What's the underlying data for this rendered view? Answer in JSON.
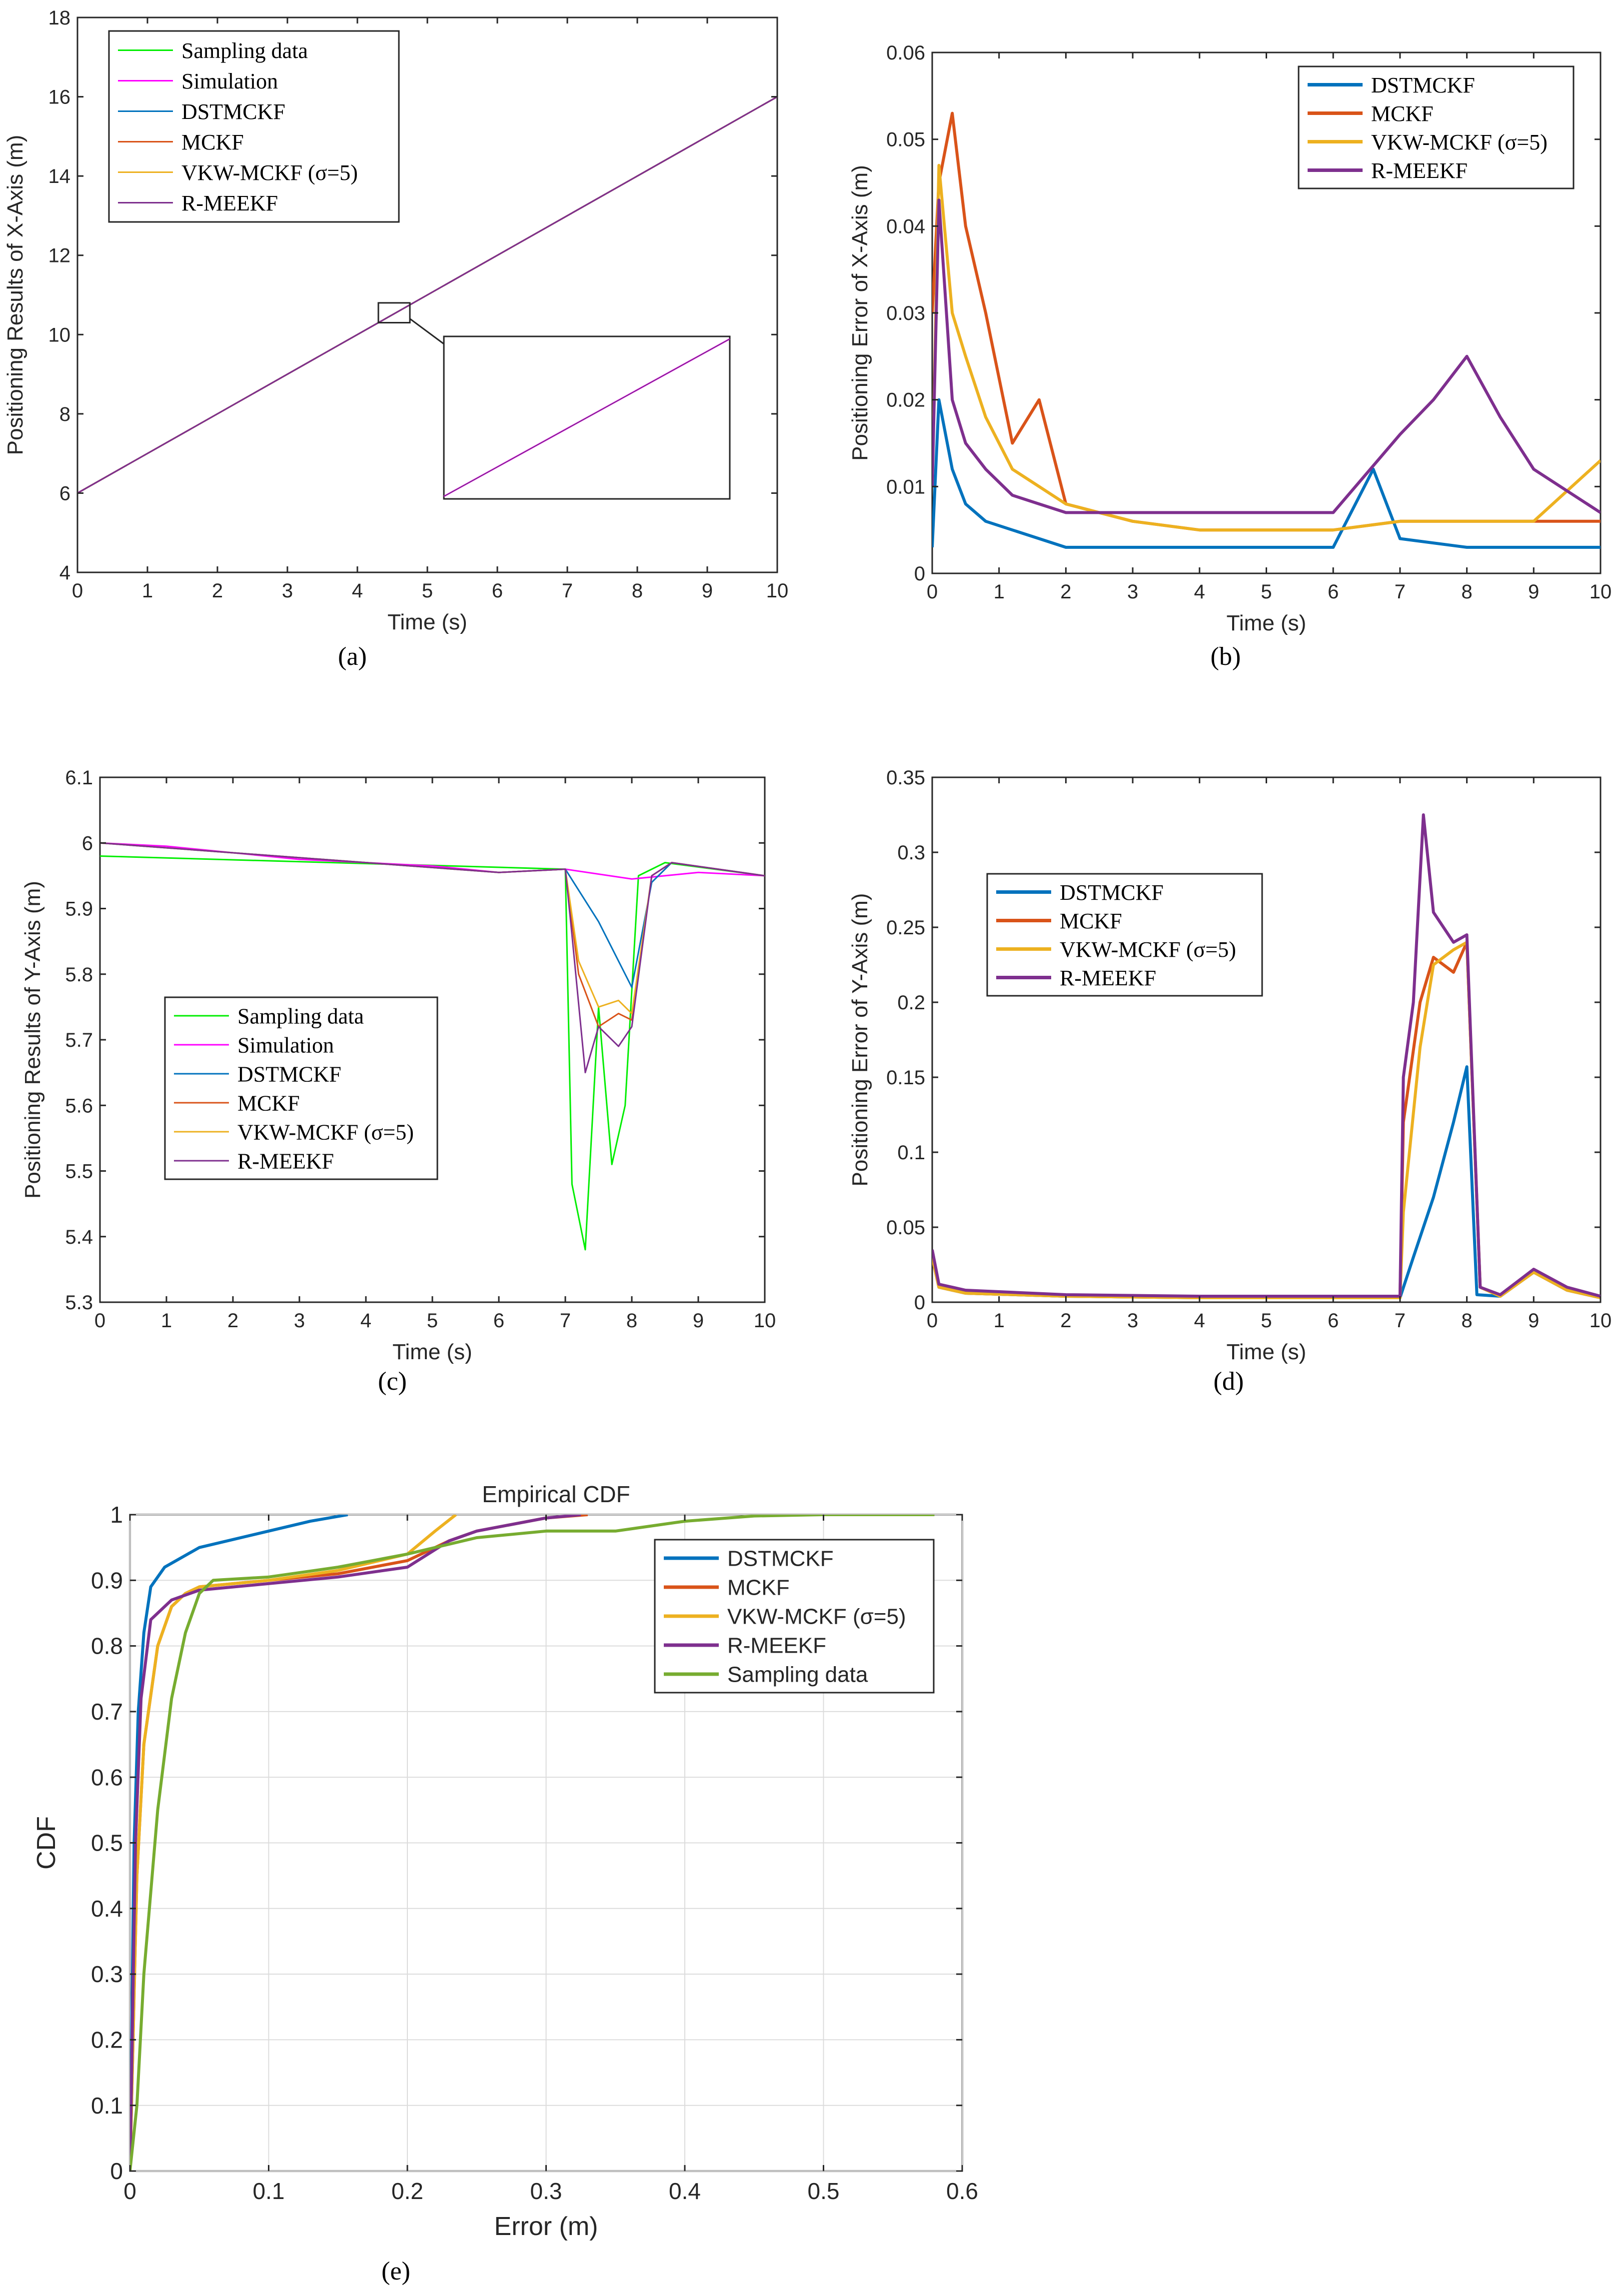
{
  "colors": {
    "sampling_green": "#00ee00",
    "simulation_magenta": "#ff00ff",
    "dstmckf": "#0072bd",
    "mckf": "#d95319",
    "vkw": "#edb120",
    "rmeekf": "#7e2f8e",
    "sampling_cdf": "#77ac30"
  },
  "chart_data": [
    {
      "id": "a",
      "panel_label": "(a)",
      "type": "line",
      "xlabel": "Time (s)",
      "ylabel": "Positioning Results of X-Axis (m)",
      "xlim": [
        0,
        10
      ],
      "ylim": [
        4,
        18
      ],
      "xticks": [
        "0",
        "1",
        "2",
        "3",
        "4",
        "5",
        "6",
        "7",
        "8",
        "9",
        "10"
      ],
      "yticks": [
        "4",
        "6",
        "8",
        "10",
        "12",
        "14",
        "16",
        "18"
      ],
      "legend_placement": "top-left",
      "note": "All series follow the straight line x = 6 + t (m); inset zoom of the region near t = 4.5 s, x = 10.5 m",
      "series": [
        {
          "name": "Sampling data",
          "color": "#00ee00",
          "x": [
            0,
            10
          ],
          "y": [
            6,
            16
          ]
        },
        {
          "name": "Simulation",
          "color": "#ff00ff",
          "x": [
            0,
            10
          ],
          "y": [
            6,
            16
          ]
        },
        {
          "name": "DSTMCKF",
          "color": "#0072bd",
          "x": [
            0,
            10
          ],
          "y": [
            6,
            16
          ]
        },
        {
          "name": "MCKF",
          "color": "#d95319",
          "x": [
            0,
            10
          ],
          "y": [
            6,
            16
          ]
        },
        {
          "name": "VKW-MCKF (σ=5)",
          "color": "#edb120",
          "x": [
            0,
            10
          ],
          "y": [
            6,
            16
          ]
        },
        {
          "name": "R-MEEKF",
          "color": "#7e2f8e",
          "x": [
            0,
            10
          ],
          "y": [
            6,
            16
          ]
        }
      ]
    },
    {
      "id": "b",
      "panel_label": "(b)",
      "type": "line",
      "xlabel": "Time (s)",
      "ylabel": "Positioning Error of X-Axis (m)",
      "xlim": [
        0,
        10
      ],
      "ylim": [
        0,
        0.06
      ],
      "xticks": [
        "0",
        "1",
        "2",
        "3",
        "4",
        "5",
        "6",
        "7",
        "8",
        "9",
        "10"
      ],
      "yticks": [
        "0",
        "0.01",
        "0.02",
        "0.03",
        "0.04",
        "0.05",
        "0.06"
      ],
      "legend_placement": "top-right",
      "series": [
        {
          "name": "DSTMCKF",
          "color": "#0072bd",
          "x": [
            0,
            0.1,
            0.3,
            0.5,
            0.8,
            1.2,
            1.6,
            2,
            3,
            4,
            5,
            6,
            6.6,
            7,
            8,
            9,
            10
          ],
          "y": [
            0.003,
            0.02,
            0.012,
            0.008,
            0.006,
            0.005,
            0.004,
            0.003,
            0.003,
            0.003,
            0.003,
            0.003,
            0.012,
            0.004,
            0.003,
            0.003,
            0.003
          ]
        },
        {
          "name": "MCKF",
          "color": "#d95319",
          "x": [
            0,
            0.1,
            0.3,
            0.5,
            0.8,
            1.2,
            1.6,
            2,
            3,
            4,
            5,
            6,
            7,
            8,
            9,
            10
          ],
          "y": [
            0.03,
            0.045,
            0.053,
            0.04,
            0.03,
            0.015,
            0.02,
            0.008,
            0.006,
            0.005,
            0.005,
            0.005,
            0.006,
            0.006,
            0.006,
            0.006
          ]
        },
        {
          "name": "VKW-MCKF (σ=5)",
          "color": "#edb120",
          "x": [
            0,
            0.1,
            0.3,
            0.5,
            0.8,
            1.2,
            1.6,
            2,
            3,
            4,
            5,
            6,
            7,
            8,
            9,
            10
          ],
          "y": [
            0.01,
            0.047,
            0.03,
            0.025,
            0.018,
            0.012,
            0.01,
            0.008,
            0.006,
            0.005,
            0.005,
            0.005,
            0.006,
            0.006,
            0.006,
            0.013
          ]
        },
        {
          "name": "R-MEEKF",
          "color": "#7e2f8e",
          "x": [
            0,
            0.1,
            0.3,
            0.5,
            0.8,
            1.2,
            1.6,
            2,
            3,
            4,
            5,
            6,
            7,
            7.5,
            8,
            8.5,
            9,
            10
          ],
          "y": [
            0.01,
            0.043,
            0.02,
            0.015,
            0.012,
            0.009,
            0.008,
            0.007,
            0.007,
            0.007,
            0.007,
            0.007,
            0.016,
            0.02,
            0.025,
            0.018,
            0.012,
            0.007
          ]
        }
      ]
    },
    {
      "id": "c",
      "panel_label": "(c)",
      "type": "line",
      "xlabel": "Time (s)",
      "ylabel": "Positioning Results of Y-Axis (m)",
      "xlim": [
        0,
        10
      ],
      "ylim": [
        5.3,
        6.1
      ],
      "xticks": [
        "0",
        "1",
        "2",
        "3",
        "4",
        "5",
        "6",
        "7",
        "8",
        "9",
        "10"
      ],
      "yticks": [
        "5.3",
        "5.4",
        "5.5",
        "5.6",
        "5.7",
        "5.8",
        "5.9",
        "6",
        "6.1"
      ],
      "legend_placement": "bottom-left",
      "series": [
        {
          "name": "Sampling data",
          "color": "#00ee00",
          "x": [
            0,
            7,
            7.1,
            7.3,
            7.5,
            7.7,
            7.9,
            8.1,
            8.5,
            10
          ],
          "y": [
            5.98,
            5.96,
            5.48,
            5.38,
            5.75,
            5.51,
            5.6,
            5.95,
            5.97,
            5.95
          ]
        },
        {
          "name": "Simulation",
          "color": "#ff00ff",
          "x": [
            0,
            1,
            2,
            3,
            4,
            5,
            6,
            7,
            8,
            9,
            10
          ],
          "y": [
            6.0,
            5.995,
            5.985,
            5.975,
            5.97,
            5.965,
            5.955,
            5.96,
            5.945,
            5.955,
            5.95
          ]
        },
        {
          "name": "DSTMCKF",
          "color": "#0072bd",
          "x": [
            0,
            6,
            7,
            7.5,
            8,
            8.3,
            8.6,
            10
          ],
          "y": [
            6.0,
            5.955,
            5.96,
            5.88,
            5.78,
            5.94,
            5.97,
            5.95
          ]
        },
        {
          "name": "MCKF",
          "color": "#d95319",
          "x": [
            0,
            6,
            7,
            7.2,
            7.5,
            7.8,
            8,
            8.3,
            8.6,
            10
          ],
          "y": [
            6.0,
            5.955,
            5.96,
            5.8,
            5.72,
            5.74,
            5.73,
            5.95,
            5.97,
            5.95
          ]
        },
        {
          "name": "VKW-MCKF (σ=5)",
          "color": "#edb120",
          "x": [
            0,
            6,
            7,
            7.2,
            7.5,
            7.8,
            8,
            8.3,
            8.6,
            10
          ],
          "y": [
            6.0,
            5.955,
            5.96,
            5.82,
            5.75,
            5.76,
            5.74,
            5.95,
            5.97,
            5.95
          ]
        },
        {
          "name": "R-MEEKF",
          "color": "#7e2f8e",
          "x": [
            0,
            6,
            7,
            7.1,
            7.3,
            7.5,
            7.8,
            8,
            8.3,
            8.6,
            10
          ],
          "y": [
            6.0,
            5.955,
            5.96,
            5.86,
            5.65,
            5.72,
            5.69,
            5.72,
            5.95,
            5.97,
            5.95
          ]
        }
      ]
    },
    {
      "id": "d",
      "panel_label": "(d)",
      "type": "line",
      "xlabel": "Time (s)",
      "ylabel": "Positioning Error of Y-Axis (m)",
      "xlim": [
        0,
        10
      ],
      "ylim": [
        0,
        0.35
      ],
      "xticks": [
        "0",
        "1",
        "2",
        "3",
        "4",
        "5",
        "6",
        "7",
        "8",
        "9",
        "10"
      ],
      "yticks": [
        "0",
        "0.05",
        "0.1",
        "0.15",
        "0.2",
        "0.25",
        "0.3",
        "0.35"
      ],
      "legend_placement": "top-left",
      "series": [
        {
          "name": "DSTMCKF",
          "color": "#0072bd",
          "x": [
            0,
            0.1,
            0.5,
            2,
            4,
            6,
            7,
            7.2,
            7.5,
            7.8,
            8,
            8.15,
            8.5,
            9,
            9.5,
            10
          ],
          "y": [
            0.03,
            0.01,
            0.006,
            0.004,
            0.003,
            0.003,
            0.003,
            0.03,
            0.07,
            0.12,
            0.157,
            0.005,
            0.004,
            0.02,
            0.008,
            0.003
          ]
        },
        {
          "name": "MCKF",
          "color": "#d95319",
          "x": [
            0,
            0.1,
            0.5,
            2,
            4,
            6,
            7,
            7.05,
            7.3,
            7.5,
            7.8,
            8,
            8.2,
            8.5,
            9,
            9.5,
            10
          ],
          "y": [
            0.03,
            0.01,
            0.006,
            0.004,
            0.003,
            0.003,
            0.003,
            0.12,
            0.2,
            0.23,
            0.22,
            0.24,
            0.01,
            0.004,
            0.02,
            0.008,
            0.003
          ]
        },
        {
          "name": "VKW-MCKF (σ=5)",
          "color": "#edb120",
          "x": [
            0,
            0.1,
            0.5,
            2,
            4,
            6,
            7,
            7.05,
            7.3,
            7.5,
            7.8,
            8,
            8.2,
            8.5,
            9,
            9.5,
            10
          ],
          "y": [
            0.03,
            0.01,
            0.006,
            0.004,
            0.003,
            0.003,
            0.003,
            0.06,
            0.17,
            0.225,
            0.235,
            0.24,
            0.01,
            0.004,
            0.02,
            0.008,
            0.003
          ]
        },
        {
          "name": "R-MEEKF",
          "color": "#7e2f8e",
          "x": [
            0,
            0.1,
            0.5,
            2,
            4,
            6,
            7,
            7.05,
            7.2,
            7.35,
            7.5,
            7.8,
            8,
            8.2,
            8.5,
            9,
            9.5,
            10
          ],
          "y": [
            0.035,
            0.012,
            0.008,
            0.005,
            0.004,
            0.004,
            0.004,
            0.15,
            0.2,
            0.325,
            0.26,
            0.24,
            0.245,
            0.01,
            0.005,
            0.022,
            0.01,
            0.004
          ]
        }
      ]
    },
    {
      "id": "e",
      "panel_label": "(e)",
      "type": "line",
      "title": "Empirical CDF",
      "xlabel": "Error (m)",
      "ylabel": "CDF",
      "xlim": [
        0,
        0.6
      ],
      "ylim": [
        0,
        1
      ],
      "xticks": [
        "0",
        "0.1",
        "0.2",
        "0.3",
        "0.4",
        "0.5",
        "0.6"
      ],
      "yticks": [
        "0",
        "0.1",
        "0.2",
        "0.3",
        "0.4",
        "0.5",
        "0.6",
        "0.7",
        "0.8",
        "0.9",
        "1"
      ],
      "grid": true,
      "legend_placement": "top-right",
      "series": [
        {
          "name": "DSTMCKF",
          "color": "#0072bd",
          "x": [
            0,
            0.003,
            0.006,
            0.01,
            0.015,
            0.025,
            0.05,
            0.1,
            0.13,
            0.157
          ],
          "y": [
            0,
            0.5,
            0.7,
            0.82,
            0.89,
            0.92,
            0.95,
            0.975,
            0.99,
            1.0
          ]
        },
        {
          "name": "MCKF",
          "color": "#d95319",
          "x": [
            0,
            0.005,
            0.01,
            0.02,
            0.03,
            0.04,
            0.05,
            0.1,
            0.15,
            0.2,
            0.23,
            0.25,
            0.3,
            0.33
          ],
          "y": [
            0,
            0.45,
            0.65,
            0.8,
            0.86,
            0.88,
            0.89,
            0.9,
            0.91,
            0.93,
            0.96,
            0.975,
            0.995,
            1.0
          ]
        },
        {
          "name": "VKW-MCKF (σ=5)",
          "color": "#edb120",
          "x": [
            0,
            0.005,
            0.01,
            0.02,
            0.03,
            0.04,
            0.05,
            0.1,
            0.15,
            0.2,
            0.22,
            0.235
          ],
          "y": [
            0,
            0.45,
            0.65,
            0.8,
            0.86,
            0.88,
            0.89,
            0.9,
            0.915,
            0.94,
            0.975,
            1.0
          ]
        },
        {
          "name": "R-MEEKF",
          "color": "#7e2f8e",
          "x": [
            0,
            0.004,
            0.008,
            0.015,
            0.03,
            0.05,
            0.1,
            0.15,
            0.2,
            0.23,
            0.25,
            0.3,
            0.325
          ],
          "y": [
            0,
            0.5,
            0.72,
            0.84,
            0.87,
            0.885,
            0.895,
            0.905,
            0.92,
            0.96,
            0.975,
            0.995,
            1.0
          ]
        },
        {
          "name": "Sampling data",
          "color": "#77ac30",
          "x": [
            0,
            0.005,
            0.01,
            0.02,
            0.03,
            0.04,
            0.05,
            0.06,
            0.1,
            0.15,
            0.2,
            0.25,
            0.3,
            0.35,
            0.4,
            0.45,
            0.5,
            0.58
          ],
          "y": [
            0,
            0.1,
            0.3,
            0.55,
            0.72,
            0.82,
            0.88,
            0.9,
            0.905,
            0.92,
            0.94,
            0.965,
            0.975,
            0.975,
            0.99,
            0.998,
            1.0,
            1.0
          ]
        }
      ]
    }
  ]
}
